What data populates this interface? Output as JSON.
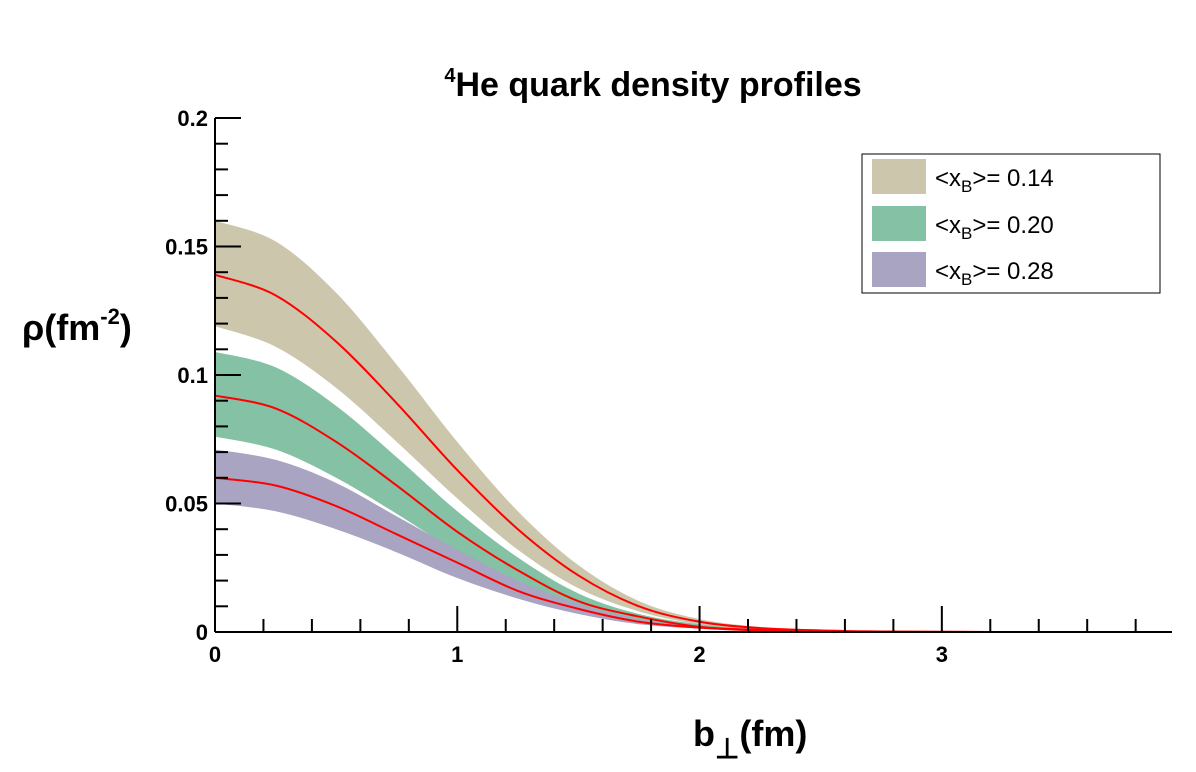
{
  "chart_data": {
    "type": "area",
    "title": {
      "sup": "4",
      "text": "He quark density profiles"
    },
    "xlabel": {
      "main": "b",
      "sub": "⊥",
      "rest": "(fm)"
    },
    "ylabel": {
      "main": "ρ(fm",
      "sup": "-2",
      "rest": ")"
    },
    "xlim": [
      0,
      3.95
    ],
    "ylim": [
      0,
      0.2
    ],
    "x_ticks": [
      0,
      1,
      2,
      3
    ],
    "x_tick_labels": [
      "0",
      "1",
      "2",
      "3"
    ],
    "y_ticks": [
      0,
      0.05,
      0.1,
      0.15,
      0.2
    ],
    "y_tick_labels": [
      "0",
      "0.05",
      "0.1",
      "0.15",
      "0.2"
    ],
    "grid": false,
    "legend_position": "top-right",
    "central_line_color": "#ff0000",
    "series": [
      {
        "name": "<x_B>= 0.14",
        "legend": {
          "prefix": "<x",
          "sub": "B",
          "suffix": ">= 0.14"
        },
        "color": "#ccc6ac",
        "x": [
          0,
          0.25,
          0.5,
          0.75,
          1.0,
          1.25,
          1.5,
          1.75,
          2.0,
          2.25,
          2.5,
          2.75,
          3.0,
          3.2
        ],
        "upper": [
          0.16,
          0.152,
          0.132,
          0.104,
          0.074,
          0.047,
          0.026,
          0.012,
          0.005,
          0.002,
          0.001,
          0.0004,
          0.0002,
          0.0001
        ],
        "center": [
          0.139,
          0.131,
          0.113,
          0.089,
          0.063,
          0.04,
          0.022,
          0.01,
          0.004,
          0.0015,
          0.0006,
          0.0002,
          0.0001,
          0.0
        ],
        "lower": [
          0.119,
          0.111,
          0.095,
          0.074,
          0.052,
          0.032,
          0.017,
          0.008,
          0.003,
          0.001,
          0.0004,
          0.0001,
          0.0,
          0.0
        ]
      },
      {
        "name": "<x_B>= 0.20",
        "legend": {
          "prefix": "<x",
          "sub": "B",
          "suffix": ">= 0.20"
        },
        "color": "#85c1a4",
        "x": [
          0,
          0.25,
          0.5,
          0.75,
          1.0,
          1.25,
          1.5,
          1.75,
          2.0,
          2.25,
          2.5,
          2.75,
          3.0
        ],
        "upper": [
          0.109,
          0.103,
          0.088,
          0.068,
          0.047,
          0.029,
          0.015,
          0.007,
          0.003,
          0.001,
          0.0004,
          0.0001,
          0.0
        ],
        "center": [
          0.092,
          0.087,
          0.074,
          0.057,
          0.039,
          0.024,
          0.012,
          0.006,
          0.002,
          0.0008,
          0.0003,
          0.0001,
          0.0
        ],
        "lower": [
          0.076,
          0.071,
          0.06,
          0.046,
          0.031,
          0.018,
          0.009,
          0.004,
          0.0015,
          0.0005,
          0.0002,
          0.0,
          0.0
        ]
      },
      {
        "name": "<x_B>= 0.28",
        "legend": {
          "prefix": "<x",
          "sub": "B",
          "suffix": ">= 0.28"
        },
        "color": "#a8a4c2",
        "x": [
          0,
          0.25,
          0.5,
          0.75,
          1.0,
          1.25,
          1.5,
          1.75,
          2.0,
          2.25,
          2.5,
          2.75,
          3.0
        ],
        "upper": [
          0.071,
          0.067,
          0.058,
          0.045,
          0.032,
          0.02,
          0.011,
          0.005,
          0.002,
          0.0008,
          0.0003,
          0.0001,
          0.0
        ],
        "center": [
          0.06,
          0.057,
          0.049,
          0.038,
          0.027,
          0.016,
          0.009,
          0.004,
          0.0017,
          0.0006,
          0.0002,
          0.0,
          0.0
        ],
        "lower": [
          0.05,
          0.047,
          0.04,
          0.031,
          0.021,
          0.013,
          0.007,
          0.003,
          0.0013,
          0.0005,
          0.0002,
          0.0,
          0.0
        ]
      }
    ]
  }
}
